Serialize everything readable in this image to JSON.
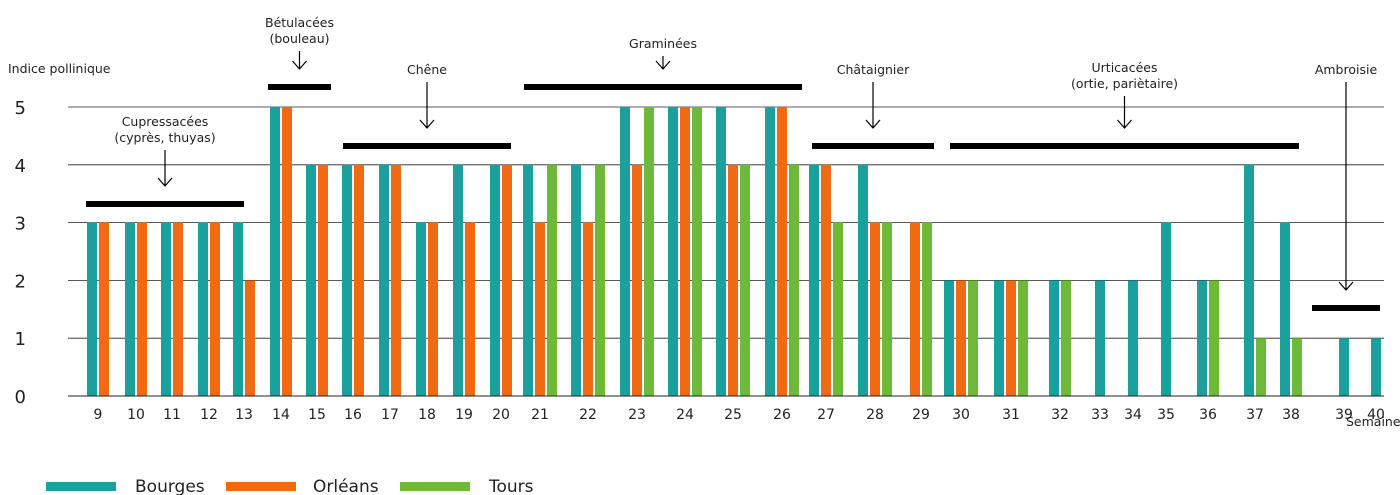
{
  "chart_data": {
    "type": "bar",
    "ylabel": "Indice pollinique",
    "xlabel": "Semaines",
    "ylim": [
      0,
      5
    ],
    "yticks": [
      0,
      1,
      2,
      3,
      4,
      5
    ],
    "grid": true,
    "weeks": [
      "9",
      "10",
      "11",
      "12",
      "13",
      "14",
      "15",
      "16",
      "17",
      "18",
      "19",
      "20",
      "21",
      "22",
      "23",
      "24",
      "25",
      "26",
      "27",
      "28",
      "29",
      "30",
      "31",
      "32",
      "33",
      "34",
      "35",
      "36",
      "37",
      "38",
      "39",
      "40"
    ],
    "series": [
      {
        "name": "Bourges",
        "color": "#1aa19e",
        "values": [
          3,
          3,
          3,
          3,
          3,
          5,
          4,
          4,
          4,
          3,
          4,
          4,
          4,
          4,
          5,
          5,
          5,
          5,
          4,
          4,
          null,
          2,
          2,
          2,
          2,
          2,
          3,
          2,
          4,
          3,
          1,
          1
        ]
      },
      {
        "name": "Orléans",
        "color": "#ef6a12",
        "values": [
          3,
          3,
          3,
          3,
          2,
          5,
          4,
          4,
          4,
          3,
          3,
          4,
          3,
          3,
          4,
          5,
          4,
          5,
          4,
          3,
          3,
          2,
          2,
          null,
          null,
          null,
          null,
          null,
          null,
          null,
          null,
          null
        ]
      },
      {
        "name": "Tours",
        "color": "#6fb93a",
        "values": [
          null,
          null,
          null,
          null,
          null,
          null,
          null,
          null,
          null,
          null,
          null,
          null,
          4,
          4,
          5,
          5,
          4,
          4,
          3,
          3,
          3,
          2,
          2,
          2,
          null,
          null,
          null,
          2,
          1,
          1,
          null,
          null
        ]
      }
    ],
    "periods": [
      {
        "label_lines": [
          "Cupressacées",
          "(cyprès, thuyas)"
        ],
        "from": "9",
        "to": "13"
      },
      {
        "label_lines": [
          "Bétulacées",
          "(bouleau)"
        ],
        "from": "14",
        "to": "15"
      },
      {
        "label_lines": [
          "Chêne"
        ],
        "from": "16",
        "to": "20"
      },
      {
        "label_lines": [
          "Graminées"
        ],
        "from": "21",
        "to": "26"
      },
      {
        "label_lines": [
          "Châtaignier"
        ],
        "from": "27",
        "to": "29"
      },
      {
        "label_lines": [
          "Urticacées",
          "(ortie, pariètaire)"
        ],
        "from": "30",
        "to": "38"
      },
      {
        "label_lines": [
          "Ambroisie"
        ],
        "from": "39",
        "to": "40"
      }
    ]
  }
}
